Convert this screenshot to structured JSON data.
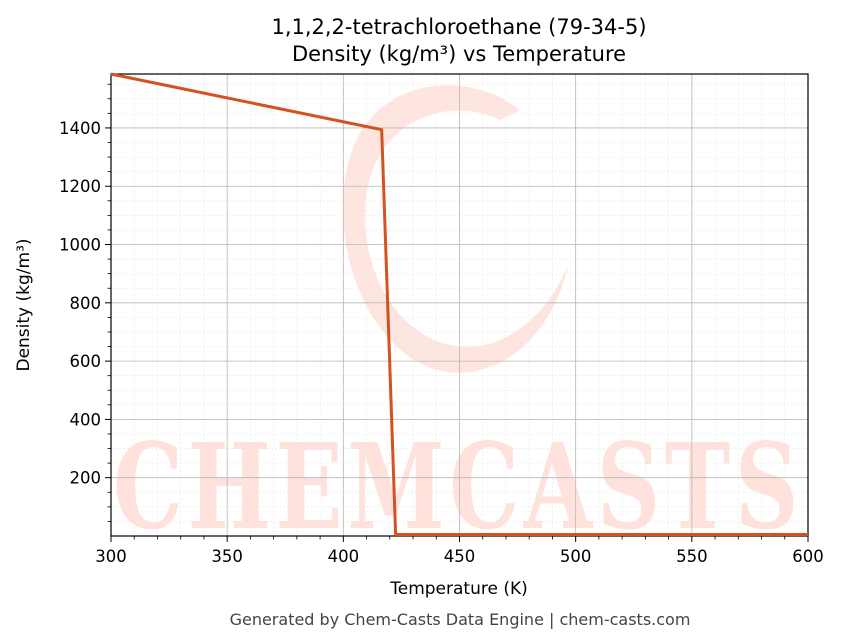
{
  "chart_data": {
    "type": "line",
    "title": "1,1,2,2-tetrachloroethane (79-34-5)",
    "subtitle": "Density (kg/m³) vs Temperature",
    "xlabel": "Temperature (K)",
    "ylabel": "Density (kg/m³)",
    "xlim": [
      300,
      600
    ],
    "ylim": [
      0,
      1585
    ],
    "xticks": [
      300,
      350,
      400,
      450,
      500,
      550,
      600
    ],
    "yticks": [
      200,
      400,
      600,
      800,
      1000,
      1200,
      1400
    ],
    "grid": true,
    "series": [
      {
        "color": "#d4521f",
        "x": [
          300,
          416.5,
          422.5,
          600
        ],
        "y": [
          1585,
          1394,
          5,
          5
        ]
      }
    ]
  },
  "footer": "Generated by Chem-Casts Data Engine | chem-casts.com",
  "watermark": {
    "text": "CHEMCASTS",
    "color": "#ffe2dc"
  }
}
